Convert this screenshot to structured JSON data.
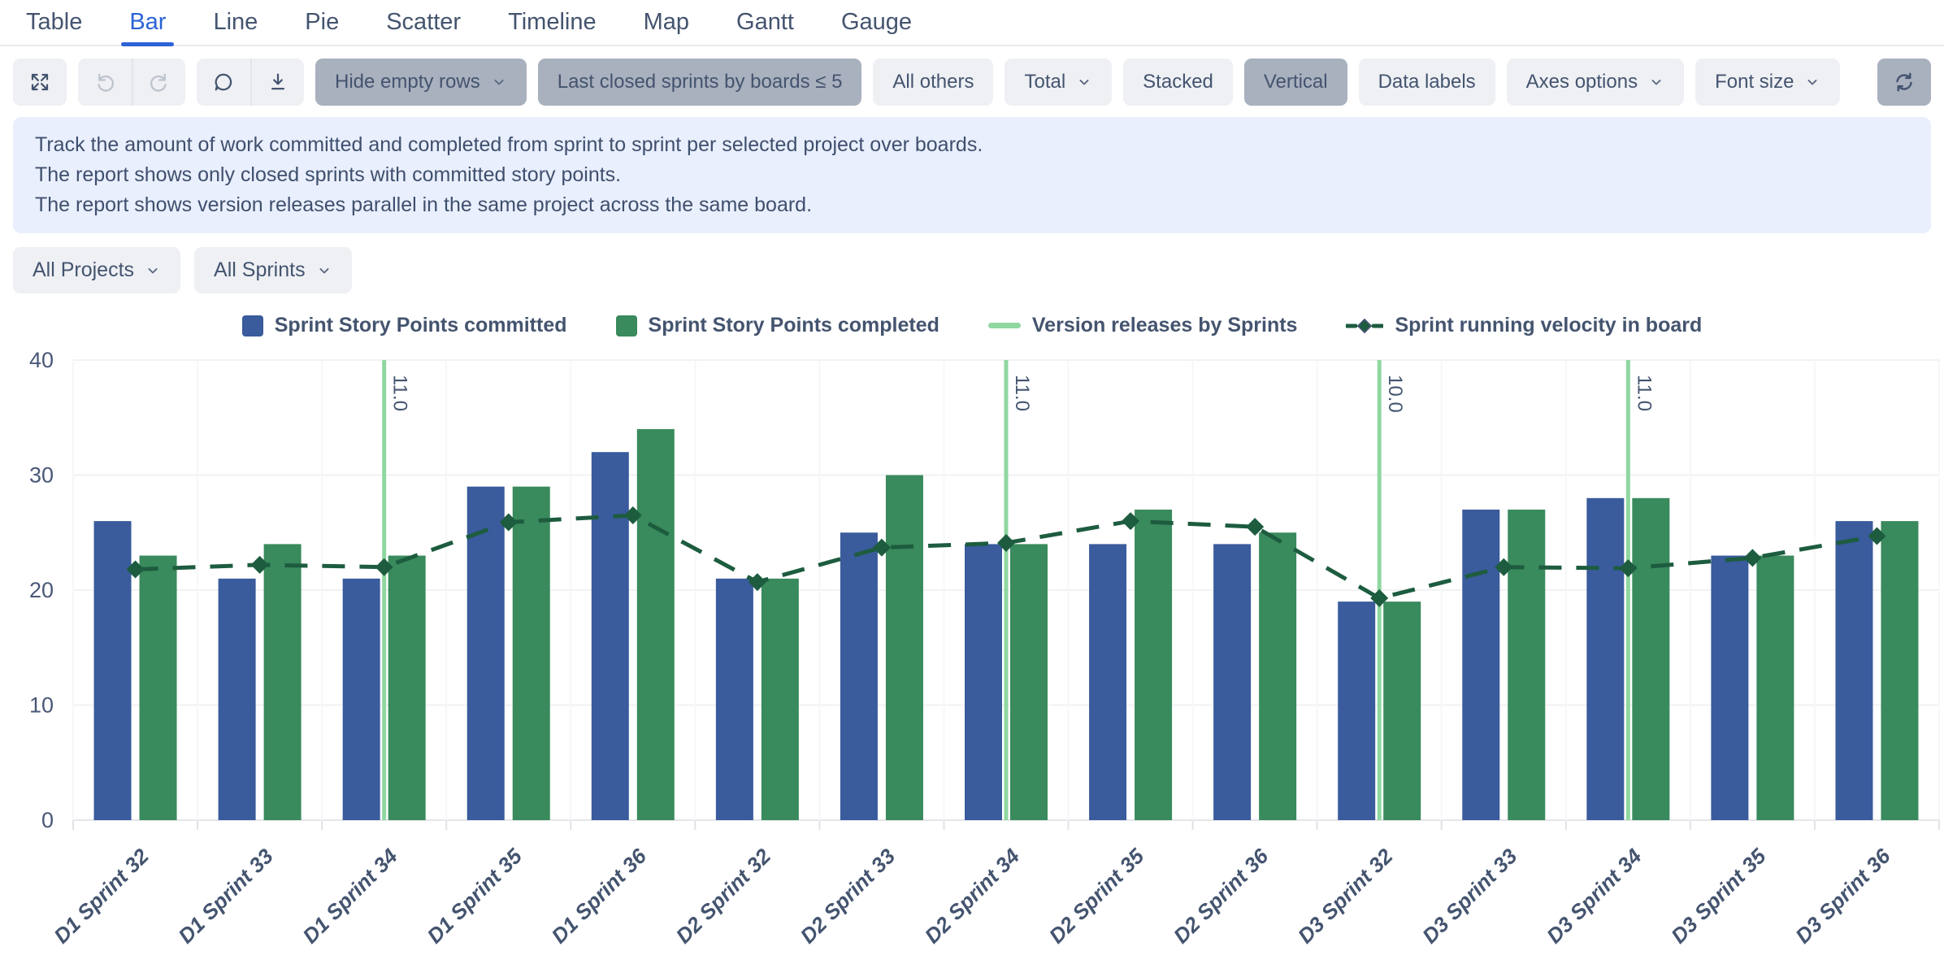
{
  "tabs": {
    "items": [
      {
        "label": "Table",
        "active": false
      },
      {
        "label": "Bar",
        "active": true
      },
      {
        "label": "Line",
        "active": false
      },
      {
        "label": "Pie",
        "active": false
      },
      {
        "label": "Scatter",
        "active": false
      },
      {
        "label": "Timeline",
        "active": false
      },
      {
        "label": "Map",
        "active": false
      },
      {
        "label": "Gantt",
        "active": false
      },
      {
        "label": "Gauge",
        "active": false
      }
    ]
  },
  "toolbar": {
    "icons": {
      "expand": "expand-icon",
      "undo": "undo-icon",
      "redo": "redo-icon",
      "comment": "comment-icon",
      "download": "download-icon",
      "refresh": "refresh-icon",
      "chevron": "chevron-down-icon"
    },
    "buttons": {
      "hide_empty_rows": "Hide empty rows",
      "last_closed": "Last closed sprints by boards ≤ 5",
      "all_others": "All others",
      "total": "Total",
      "stacked": "Stacked",
      "vertical": "Vertical",
      "data_labels": "Data labels",
      "axes_options": "Axes options",
      "font_size": "Font size"
    }
  },
  "info": {
    "line1": "Track the amount of work committed and completed from sprint to sprint per selected project over boards.",
    "line2": "The report shows only closed sprints with committed story points.",
    "line3": "The report shows version releases parallel in the same project across the same board."
  },
  "filters": {
    "projects": "All Projects",
    "sprints": "All Sprints"
  },
  "colors": {
    "accent_blue": "#2c63d6",
    "text": "#44546f",
    "active_button_bg": "#a9b0be",
    "button_bg": "#eef0f4",
    "info_bg": "#e9effc",
    "bar_committed": "#3a5b9c",
    "bar_completed": "#398a5c",
    "velocity_line": "#1d5c3f",
    "release_line": "#8fd7a0"
  },
  "chart_data": {
    "type": "bar",
    "title": "",
    "xlabel": "",
    "ylabel": "",
    "ylim": [
      0,
      40
    ],
    "yticks": [
      0,
      10,
      20,
      30,
      40
    ],
    "grid": true,
    "legend_position": "top",
    "categories": [
      "D1 Sprint 32",
      "D1 Sprint 33",
      "D1 Sprint 34",
      "D1 Sprint 35",
      "D1 Sprint 36",
      "D2 Sprint 32",
      "D2 Sprint 33",
      "D2 Sprint 34",
      "D2 Sprint 35",
      "D2 Sprint 36",
      "D3 Sprint 32",
      "D3 Sprint 33",
      "D3 Sprint 34",
      "D3 Sprint 35",
      "D3 Sprint 36"
    ],
    "series": [
      {
        "name": "Sprint Story Points committed",
        "type": "bar",
        "color": "#3a5b9c",
        "values": [
          26,
          21,
          21,
          29,
          32,
          21,
          25,
          24,
          24,
          24,
          19,
          27,
          28,
          23,
          26
        ]
      },
      {
        "name": "Sprint Story Points completed",
        "type": "bar",
        "color": "#398a5c",
        "values": [
          23,
          24,
          23,
          29,
          34,
          21,
          30,
          24,
          27,
          25,
          19,
          27,
          28,
          23,
          26
        ]
      },
      {
        "name": "Sprint running velocity in board",
        "type": "line",
        "style": "dashed-diamond",
        "color": "#1d5c3f",
        "values": [
          21.8,
          22.2,
          22.0,
          25.9,
          26.5,
          20.7,
          23.7,
          24.1,
          26.0,
          25.5,
          19.3,
          22.0,
          21.9,
          22.8,
          24.7
        ]
      }
    ],
    "version_releases": {
      "name": "Version releases by Sprints",
      "color": "#8fd7a0",
      "markers": [
        {
          "category": "D1 Sprint 34",
          "label": "11.0"
        },
        {
          "category": "D2 Sprint 34",
          "label": "11.0"
        },
        {
          "category": "D3 Sprint 32",
          "label": "10.0"
        },
        {
          "category": "D3 Sprint 34",
          "label": "11.0"
        }
      ]
    }
  }
}
